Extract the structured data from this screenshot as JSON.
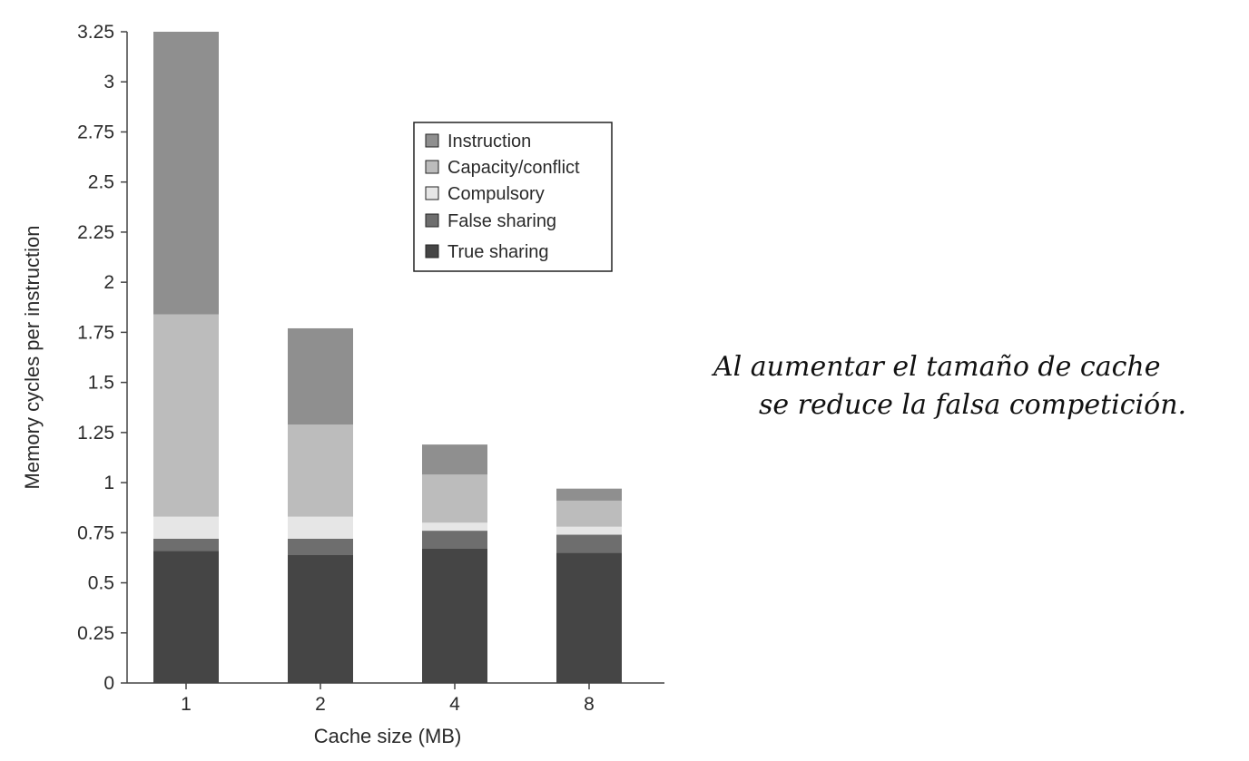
{
  "chart_data": {
    "type": "bar",
    "stacked": true,
    "xlabel": "Cache size (MB)",
    "ylabel": "Memory cycles per instruction",
    "categories": [
      "1",
      "2",
      "4",
      "8"
    ],
    "ylim": [
      0,
      3.25
    ],
    "yticks": [
      "0",
      "0.25",
      "0.5",
      "0.75",
      "1",
      "1.25",
      "1.5",
      "1.75",
      "2",
      "2.25",
      "2.5",
      "2.75",
      "3",
      "3.25"
    ],
    "grid": false,
    "legend_position": "top-right",
    "series": [
      {
        "name": "True sharing",
        "color": "#454545",
        "values": [
          0.66,
          0.64,
          0.67,
          0.65
        ]
      },
      {
        "name": "False sharing",
        "color": "#6e6e6e",
        "values": [
          0.06,
          0.08,
          0.09,
          0.09
        ]
      },
      {
        "name": "Compulsory",
        "color": "#e6e6e6",
        "values": [
          0.11,
          0.11,
          0.04,
          0.04
        ]
      },
      {
        "name": "Capacity/conflict",
        "color": "#bcbcbc",
        "values": [
          1.01,
          0.46,
          0.24,
          0.13
        ]
      },
      {
        "name": "Instruction",
        "color": "#8f8f8f",
        "values": [
          1.41,
          0.48,
          0.15,
          0.06
        ]
      }
    ],
    "legend_order": [
      "Instruction",
      "Capacity/conflict",
      "Compulsory",
      "False sharing",
      "True sharing"
    ]
  },
  "annotation": {
    "line1": "Al aumentar el tamaño de cache",
    "line2": "se reduce la falsa competición."
  }
}
